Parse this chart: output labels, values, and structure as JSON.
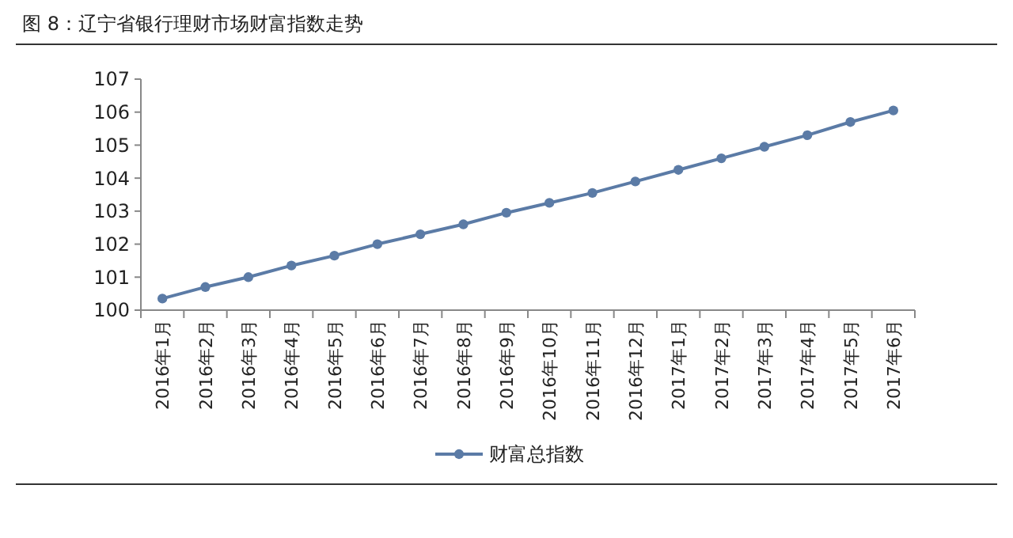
{
  "chart_data": {
    "type": "line",
    "title": "图 8：辽宁省银行理财市场财富指数走势",
    "categories": [
      "2016年1月",
      "2016年2月",
      "2016年3月",
      "2016年4月",
      "2016年5月",
      "2016年6月",
      "2016年7月",
      "2016年8月",
      "2016年9月",
      "2016年10月",
      "2016年11月",
      "2016年12月",
      "2017年1月",
      "2017年2月",
      "2017年3月",
      "2017年4月",
      "2017年5月",
      "2017年6月"
    ],
    "series": [
      {
        "name": "财富总指数",
        "color": "#5b7ba6",
        "values": [
          100.35,
          100.7,
          101.0,
          101.35,
          101.65,
          102.0,
          102.3,
          102.6,
          102.95,
          103.25,
          103.55,
          103.9,
          104.25,
          104.6,
          104.95,
          105.3,
          105.7,
          106.05
        ]
      }
    ],
    "ylim": [
      100,
      107
    ],
    "yticks": [
      100,
      101,
      102,
      103,
      104,
      105,
      106,
      107
    ],
    "grid": false,
    "legend": "bottom",
    "marker": "circle",
    "line_style": "solid"
  }
}
